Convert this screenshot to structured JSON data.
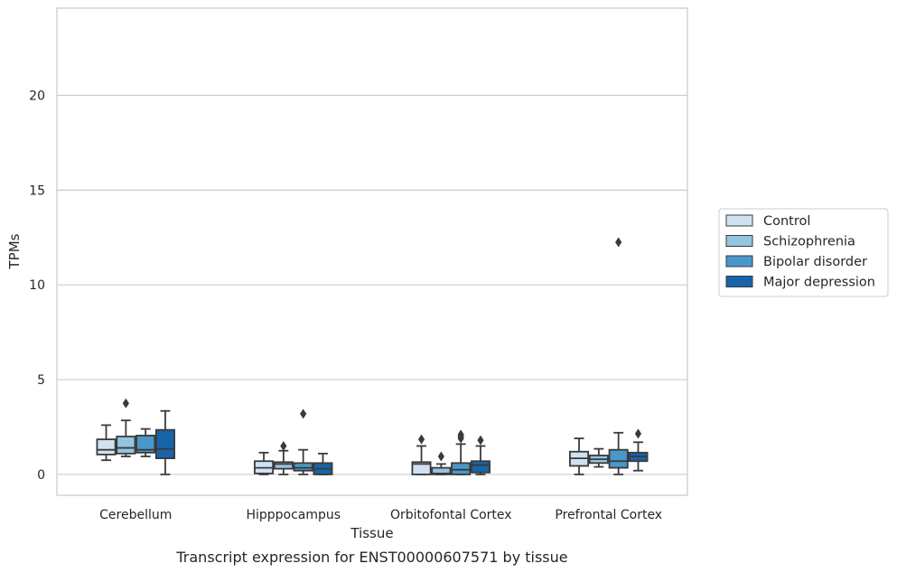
{
  "chart_data": {
    "type": "box",
    "caption": "Transcript expression for ENST00000607571 by tissue",
    "xlabel": "Tissue",
    "ylabel": "TPMs",
    "ylim": [
      -1.1,
      24.6
    ],
    "yticks": [
      0,
      5,
      10,
      15,
      20
    ],
    "grid": true,
    "legend_position": "right",
    "categories": [
      "Cerebellum",
      "Hipppocampus",
      "Orbitofontal Cortex",
      "Prefrontal Cortex"
    ],
    "series": [
      {
        "name": "Control",
        "color": "#d0e1f2",
        "boxes": [
          {
            "whisker_low": 0.75,
            "q1": 1.05,
            "median": 1.3,
            "q3": 1.85,
            "whisker_high": 2.6,
            "outliers": []
          },
          {
            "whisker_low": 0.0,
            "q1": 0.05,
            "median": 0.35,
            "q3": 0.7,
            "whisker_high": 1.15,
            "outliers": []
          },
          {
            "whisker_low": 0.0,
            "q1": 0.0,
            "median": 0.55,
            "q3": 0.65,
            "whisker_high": 1.5,
            "outliers": [
              1.85
            ]
          },
          {
            "whisker_low": 0.0,
            "q1": 0.45,
            "median": 0.85,
            "q3": 1.2,
            "whisker_high": 1.9,
            "outliers": []
          }
        ]
      },
      {
        "name": "Schizophrenia",
        "color": "#94c4df",
        "boxes": [
          {
            "whisker_low": 0.95,
            "q1": 1.1,
            "median": 1.4,
            "q3": 2.0,
            "whisker_high": 2.85,
            "outliers": [
              3.75
            ]
          },
          {
            "whisker_low": 0.0,
            "q1": 0.3,
            "median": 0.55,
            "q3": 0.65,
            "whisker_high": 1.25,
            "outliers": [
              1.5
            ]
          },
          {
            "whisker_low": 0.0,
            "q1": 0.0,
            "median": 0.05,
            "q3": 0.35,
            "whisker_high": 0.55,
            "outliers": [
              0.95
            ]
          },
          {
            "whisker_low": 0.4,
            "q1": 0.6,
            "median": 0.8,
            "q3": 1.0,
            "whisker_high": 1.35,
            "outliers": []
          }
        ]
      },
      {
        "name": "Bipolar disorder",
        "color": "#4a98c9",
        "boxes": [
          {
            "whisker_low": 0.95,
            "q1": 1.15,
            "median": 1.3,
            "q3": 2.05,
            "whisker_high": 2.4,
            "outliers": []
          },
          {
            "whisker_low": 0.0,
            "q1": 0.2,
            "median": 0.35,
            "q3": 0.6,
            "whisker_high": 1.3,
            "outliers": [
              3.2
            ]
          },
          {
            "whisker_low": 0.0,
            "q1": 0.0,
            "median": 0.25,
            "q3": 0.6,
            "whisker_high": 1.6,
            "outliers": [
              1.9,
              2.0,
              2.1
            ]
          },
          {
            "whisker_low": 0.0,
            "q1": 0.35,
            "median": 0.7,
            "q3": 1.3,
            "whisker_high": 2.2,
            "outliers": [
              12.25
            ]
          }
        ]
      },
      {
        "name": "Major depression",
        "color": "#1764ab",
        "boxes": [
          {
            "whisker_low": 0.0,
            "q1": 0.85,
            "median": 1.35,
            "q3": 2.35,
            "whisker_high": 3.35,
            "outliers": []
          },
          {
            "whisker_low": 0.0,
            "q1": 0.0,
            "median": 0.3,
            "q3": 0.6,
            "whisker_high": 1.1,
            "outliers": []
          },
          {
            "whisker_low": 0.0,
            "q1": 0.1,
            "median": 0.5,
            "q3": 0.7,
            "whisker_high": 1.5,
            "outliers": [
              1.8
            ]
          },
          {
            "whisker_low": 0.2,
            "q1": 0.7,
            "median": 0.95,
            "q3": 1.15,
            "whisker_high": 1.7,
            "outliers": [
              2.15
            ]
          }
        ]
      }
    ]
  }
}
